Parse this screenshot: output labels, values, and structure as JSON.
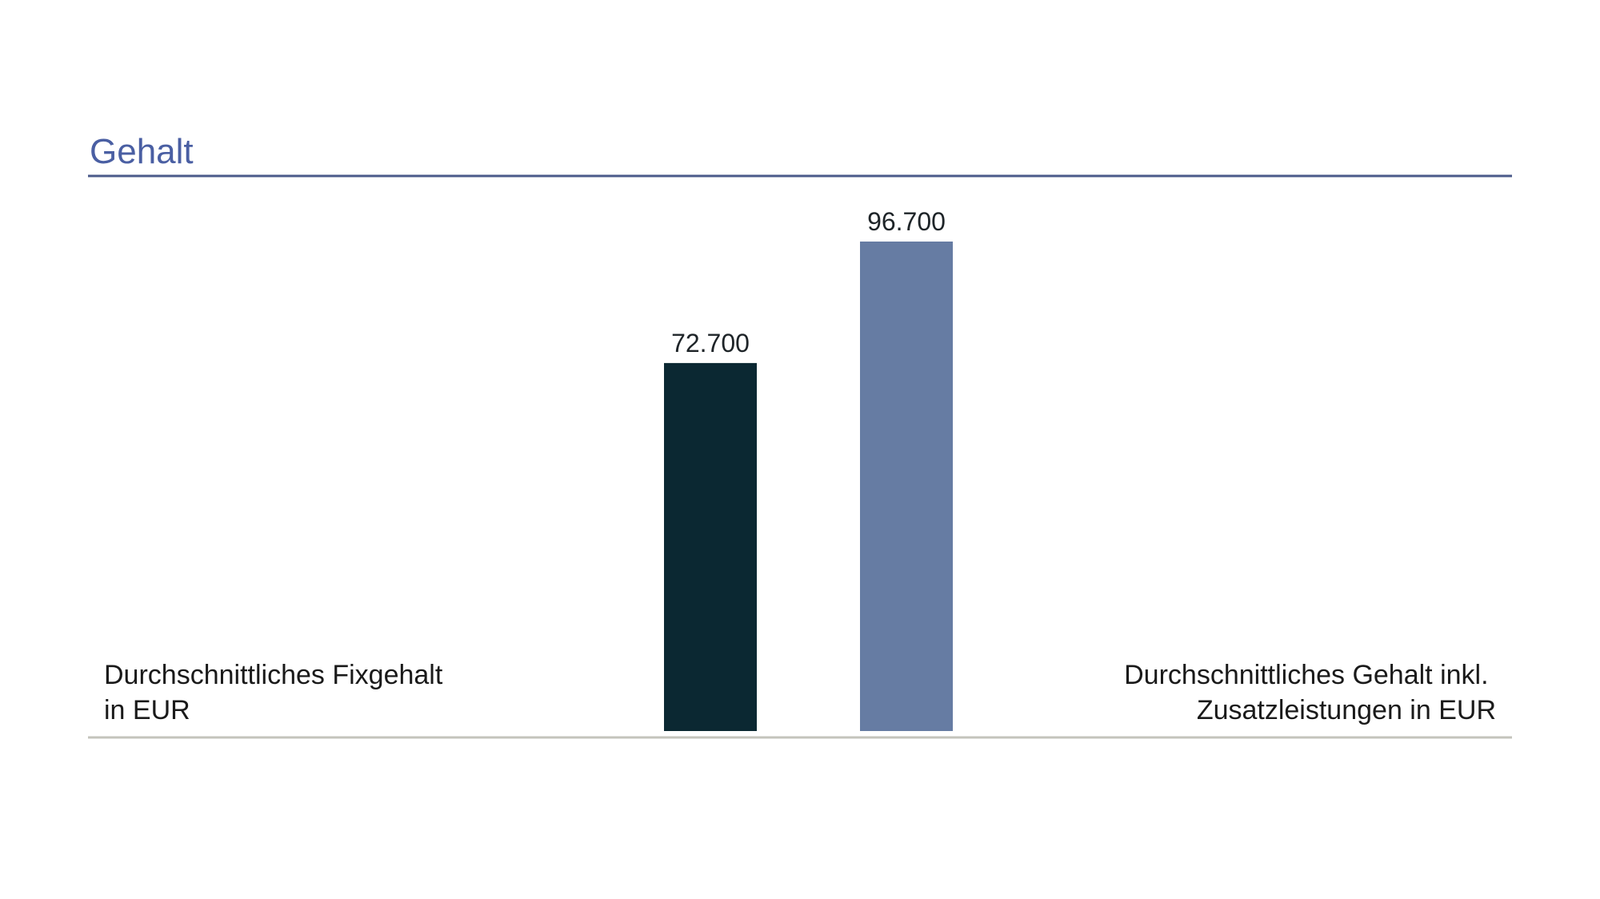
{
  "chart_data": {
    "type": "bar",
    "title": "Gehalt",
    "categories": [
      "Durchschnittliches Fixgehalt in EUR",
      "Durchschnittliches Gehalt inkl. Zusatzleistungen in EUR"
    ],
    "values": [
      72700,
      96700
    ],
    "value_labels": [
      "72.700",
      "96.700"
    ],
    "category_label_lines": [
      [
        "Durchschnittliches Fixgehalt",
        "in EUR"
      ],
      [
        "Durchschnittliches Gehalt inkl.",
        "Zusatzleistungen in EUR"
      ]
    ],
    "bar_colors": [
      "#0b2832",
      "#667ca3"
    ],
    "title_color": "#4a5fa3",
    "rule_color_top": "#4a5a8a",
    "rule_color_bottom": "#c4c4bc",
    "ylim": [
      0,
      96700
    ],
    "grid": false,
    "legend": "none"
  }
}
